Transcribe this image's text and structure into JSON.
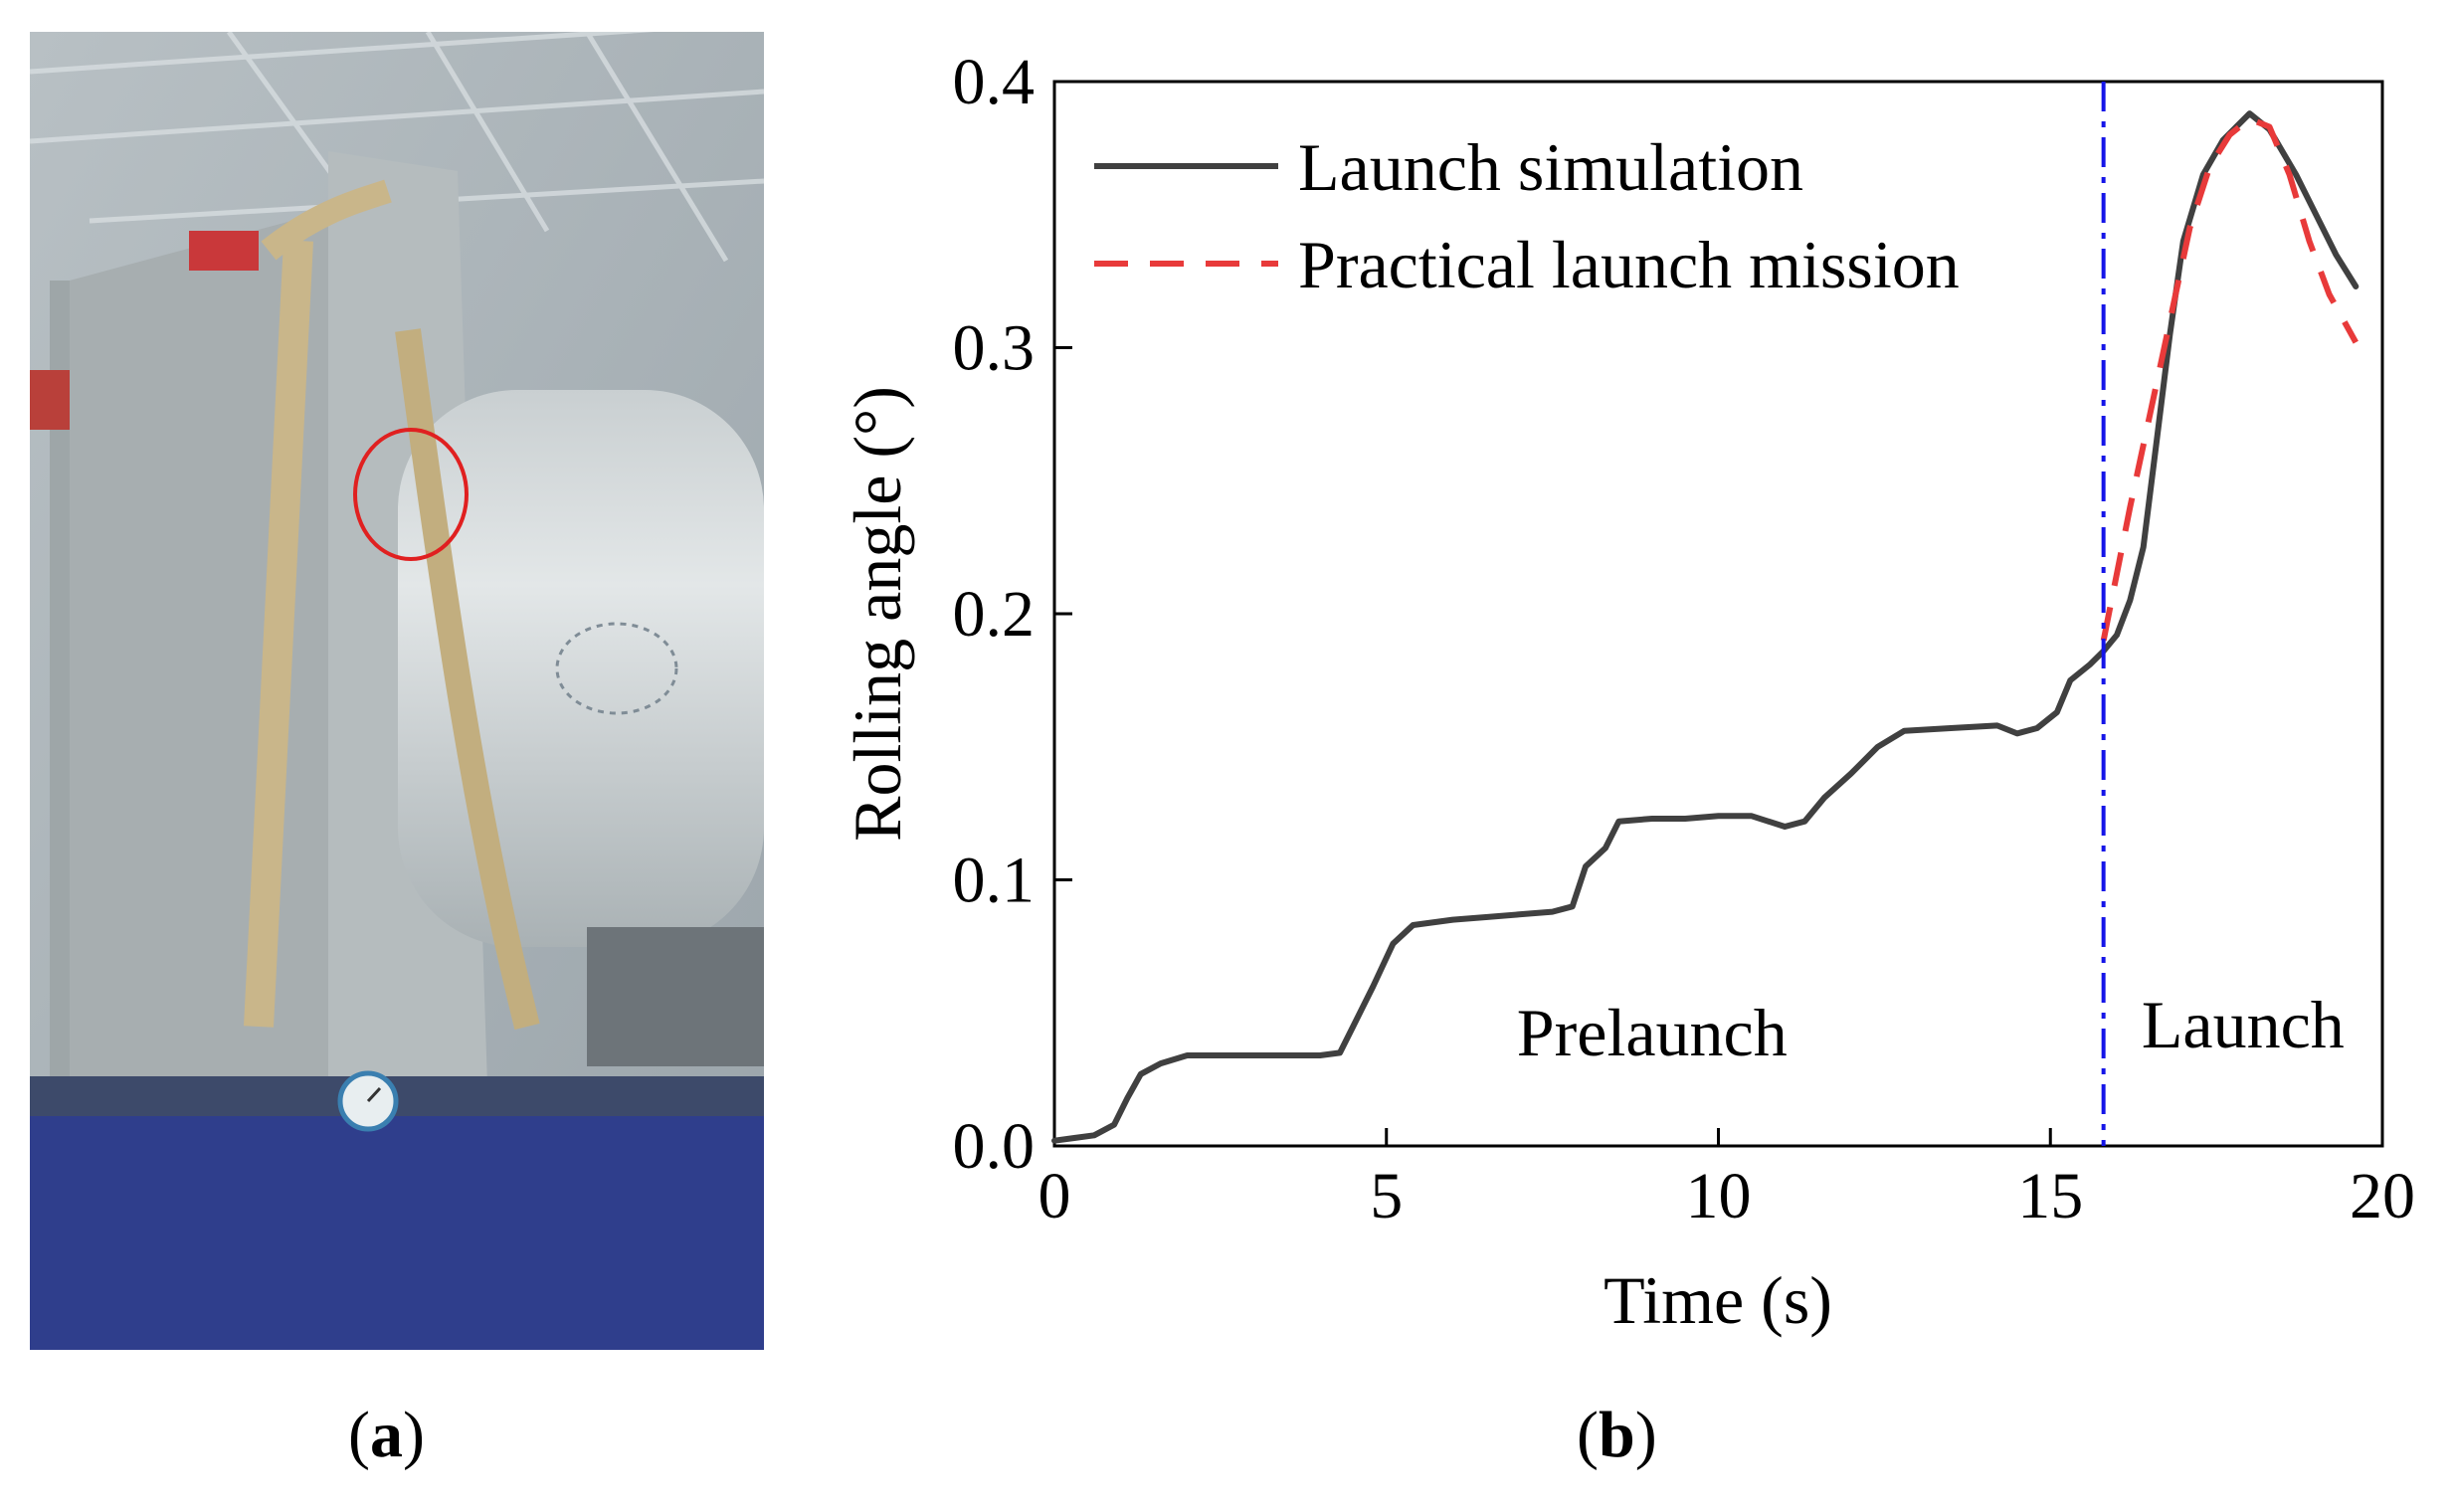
{
  "panels": {
    "a": {
      "open": "(",
      "letter": "a",
      "close": ")"
    },
    "b": {
      "open": "(",
      "letter": "b",
      "close": ")"
    }
  },
  "photo": {
    "icon": "launch-equipment-photo",
    "highlight_color": "#e02020"
  },
  "chart_data": {
    "type": "line",
    "xlabel": "Time (s)",
    "ylabel": "Rolling angle (°)",
    "xlim": [
      0,
      20
    ],
    "ylim": [
      0.0,
      0.4
    ],
    "xticks": [
      0,
      5,
      10,
      15,
      20
    ],
    "yticks": [
      "0.0",
      "0.1",
      "0.2",
      "0.3",
      "0.4"
    ],
    "grid": false,
    "legend_position": "top-left",
    "series": [
      {
        "name": "Launch simulation",
        "color": "#404040",
        "style": "solid",
        "points": [
          [
            0,
            0.002
          ],
          [
            0.3,
            0.003
          ],
          [
            0.6,
            0.004
          ],
          [
            0.9,
            0.008
          ],
          [
            1.1,
            0.018
          ],
          [
            1.3,
            0.027
          ],
          [
            1.6,
            0.031
          ],
          [
            2,
            0.034
          ],
          [
            2.5,
            0.034
          ],
          [
            3,
            0.034
          ],
          [
            3.5,
            0.034
          ],
          [
            4,
            0.034
          ],
          [
            4.3,
            0.035
          ],
          [
            4.5,
            0.045
          ],
          [
            4.8,
            0.06
          ],
          [
            5.1,
            0.076
          ],
          [
            5.4,
            0.083
          ],
          [
            6,
            0.085
          ],
          [
            6.5,
            0.086
          ],
          [
            7,
            0.087
          ],
          [
            7.5,
            0.088
          ],
          [
            7.8,
            0.09
          ],
          [
            8,
            0.105
          ],
          [
            8.3,
            0.112
          ],
          [
            8.5,
            0.122
          ],
          [
            9,
            0.123
          ],
          [
            9.5,
            0.123
          ],
          [
            10,
            0.124
          ],
          [
            10.5,
            0.124
          ],
          [
            11,
            0.12
          ],
          [
            11.3,
            0.122
          ],
          [
            11.6,
            0.131
          ],
          [
            12,
            0.14
          ],
          [
            12.4,
            0.15
          ],
          [
            12.8,
            0.156
          ],
          [
            13.5,
            0.157
          ],
          [
            14.2,
            0.158
          ],
          [
            14.5,
            0.155
          ],
          [
            14.8,
            0.157
          ],
          [
            15.1,
            0.163
          ],
          [
            15.3,
            0.175
          ],
          [
            15.6,
            0.181
          ],
          [
            15.8,
            0.186
          ],
          [
            16,
            0.192
          ],
          [
            16.2,
            0.205
          ],
          [
            16.4,
            0.225
          ],
          [
            16.6,
            0.265
          ],
          [
            16.8,
            0.305
          ],
          [
            17,
            0.34
          ],
          [
            17.3,
            0.365
          ],
          [
            17.6,
            0.378
          ],
          [
            18,
            0.388
          ],
          [
            18.3,
            0.382
          ],
          [
            18.7,
            0.365
          ],
          [
            19,
            0.35
          ],
          [
            19.3,
            0.335
          ],
          [
            19.6,
            0.323
          ]
        ]
      },
      {
        "name": "Practical launch mission",
        "color": "#e83a3a",
        "style": "dashed",
        "points": [
          [
            15.8,
            0.19
          ],
          [
            16,
            0.215
          ],
          [
            16.2,
            0.24
          ],
          [
            16.5,
            0.275
          ],
          [
            16.8,
            0.31
          ],
          [
            17.1,
            0.345
          ],
          [
            17.4,
            0.368
          ],
          [
            17.7,
            0.38
          ],
          [
            18,
            0.386
          ],
          [
            18.3,
            0.383
          ],
          [
            18.6,
            0.365
          ],
          [
            18.9,
            0.34
          ],
          [
            19.2,
            0.32
          ],
          [
            19.6,
            0.302
          ]
        ]
      }
    ],
    "annotations": [
      {
        "text": "Prelaunch",
        "x": 9.0,
        "y": 0.034
      },
      {
        "text": "Launch",
        "x": 17.9,
        "y": 0.037
      }
    ],
    "vline": {
      "x": 15.8,
      "color": "#1515e8",
      "style": "dash-dot"
    }
  }
}
